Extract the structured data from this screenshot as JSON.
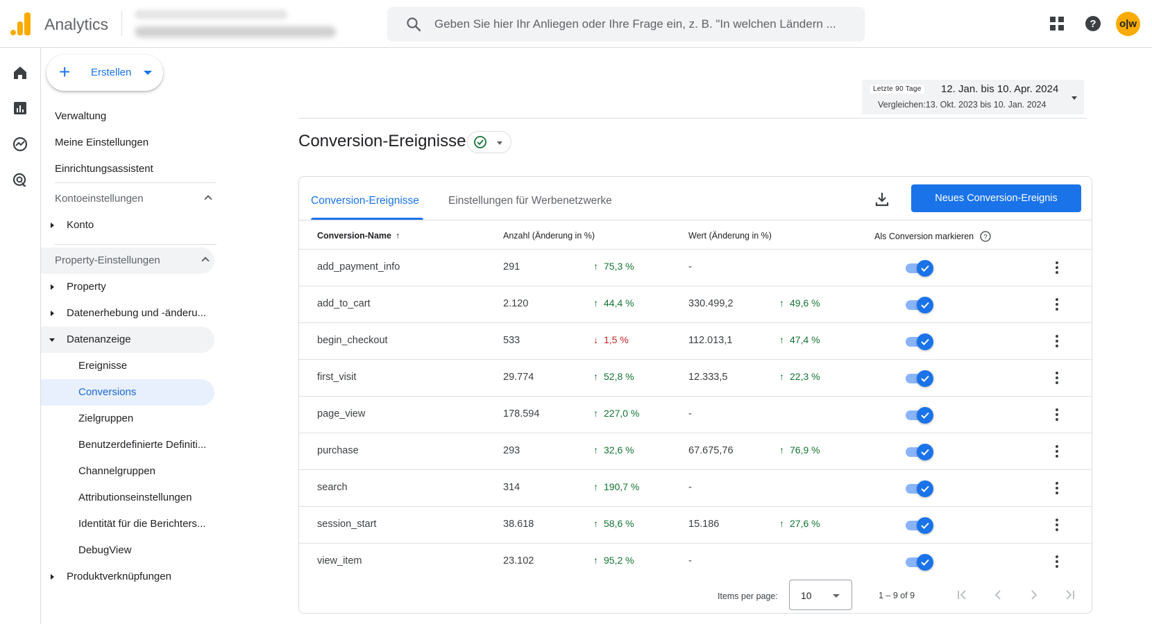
{
  "app": {
    "title": "Analytics",
    "brand_color": "#f9ab00",
    "accent": "#1a73e8"
  },
  "topbar": {
    "search_placeholder": "Geben Sie hier Ihr Anliegen oder Ihre Frage ein, z. B. \"In welchen Ländern ...",
    "avatar_text": "o|w",
    "icons": [
      "search-icon",
      "apps-grid-icon",
      "help-icon",
      "avatar"
    ]
  },
  "rail": {
    "icons": [
      "home-icon",
      "reports-icon",
      "explore-icon",
      "advertising-icon"
    ]
  },
  "sidenav": {
    "create_label": "Erstellen",
    "items": [
      "Verwaltung",
      "Meine Einstellungen",
      "Einrichtungsassistent",
      "Kontoeinstellungen",
      "Konto",
      "Property-Einstellungen",
      "Property",
      "Datenerhebung und -änderu...",
      "Datenanzeige",
      "Ereignisse",
      "Conversions",
      "Zielgruppen",
      "Benutzerdefinierte Definiti...",
      "Channelgruppen",
      "Attributionseinstellungen",
      "Identität für die Berichters...",
      "DebugView",
      "Produktverknüpfungen"
    ],
    "active_item": "Conversions"
  },
  "date_range": {
    "preset": "Letzte 90 Tage",
    "range": "12. Jan. bis 10. Apr. 2024",
    "compare": "Vergleichen:13. Okt. 2023 bis 10. Jan. 2024"
  },
  "page": {
    "title": "Conversion-Ereignisse",
    "tabs": [
      "Conversion-Ereignisse",
      "Einstellungen für Werbenetzwerke"
    ],
    "active_tab": "Conversion-Ereignisse",
    "new_button": "Neues Conversion-Ereignis"
  },
  "table": {
    "columns": [
      "Conversion-Name",
      "Anzahl (Änderung in %)",
      "Wert (Änderung in %)",
      "Als Conversion markieren"
    ],
    "rows": [
      {
        "name": "add_payment_info",
        "count": "291",
        "count_change": "75,3 %",
        "count_dir": "up",
        "value": "-",
        "value_change": "",
        "value_dir": "",
        "marked": true
      },
      {
        "name": "add_to_cart",
        "count": "2.120",
        "count_change": "44,4 %",
        "count_dir": "up",
        "value": "330.499,2",
        "value_change": "49,6 %",
        "value_dir": "up",
        "marked": true
      },
      {
        "name": "begin_checkout",
        "count": "533",
        "count_change": "1,5 %",
        "count_dir": "down",
        "value": "112.013,1",
        "value_change": "47,4 %",
        "value_dir": "up",
        "marked": true
      },
      {
        "name": "first_visit",
        "count": "29.774",
        "count_change": "52,8 %",
        "count_dir": "up",
        "value": "12.333,5",
        "value_change": "22,3 %",
        "value_dir": "up",
        "marked": true
      },
      {
        "name": "page_view",
        "count": "178.594",
        "count_change": "227,0 %",
        "count_dir": "up",
        "value": "-",
        "value_change": "",
        "value_dir": "",
        "marked": true
      },
      {
        "name": "purchase",
        "count": "293",
        "count_change": "32,6 %",
        "count_dir": "up",
        "value": "67.675,76",
        "value_change": "76,9 %",
        "value_dir": "up",
        "marked": true
      },
      {
        "name": "search",
        "count": "314",
        "count_change": "190,7 %",
        "count_dir": "up",
        "value": "-",
        "value_change": "",
        "value_dir": "",
        "marked": true
      },
      {
        "name": "session_start",
        "count": "38.618",
        "count_change": "58,6 %",
        "count_dir": "up",
        "value": "15.186",
        "value_change": "27,6 %",
        "value_dir": "up",
        "marked": true
      },
      {
        "name": "view_item",
        "count": "23.102",
        "count_change": "95,2 %",
        "count_dir": "up",
        "value": "-",
        "value_change": "",
        "value_dir": "",
        "marked": true
      }
    ],
    "up_color": "#137333",
    "down_color": "#c5221f"
  },
  "pagination": {
    "items_per_page_label": "Items per page:",
    "items_per_page": "10",
    "range": "1 – 9 of 9"
  }
}
